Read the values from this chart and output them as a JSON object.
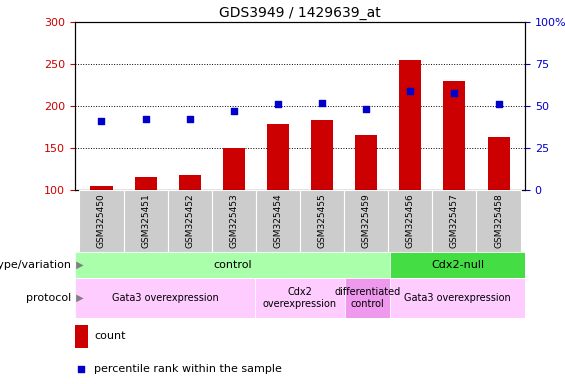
{
  "title": "GDS3949 / 1429639_at",
  "samples": [
    "GSM325450",
    "GSM325451",
    "GSM325452",
    "GSM325453",
    "GSM325454",
    "GSM325455",
    "GSM325459",
    "GSM325456",
    "GSM325457",
    "GSM325458"
  ],
  "counts": [
    105,
    115,
    118,
    150,
    178,
    183,
    165,
    255,
    230,
    163
  ],
  "percentile_ranks_left_scale": [
    182,
    185,
    185,
    194,
    202,
    203,
    196,
    218,
    215,
    202
  ],
  "count_base": 100,
  "ylim_left": [
    100,
    300
  ],
  "ylim_right": [
    0,
    100
  ],
  "yticks_left": [
    100,
    150,
    200,
    250,
    300
  ],
  "yticklabels_left": [
    "100",
    "150",
    "200",
    "250",
    "300"
  ],
  "yticks_right": [
    0,
    25,
    50,
    75,
    100
  ],
  "yticklabels_right": [
    "0",
    "25",
    "50",
    "75",
    "100%"
  ],
  "bar_color": "#cc0000",
  "scatter_color": "#0000cc",
  "genotype_groups": [
    {
      "label": "control",
      "start": 0,
      "end": 7,
      "color": "#aaffaa"
    },
    {
      "label": "Cdx2-null",
      "start": 7,
      "end": 10,
      "color": "#44dd44"
    }
  ],
  "protocol_groups": [
    {
      "label": "Gata3 overexpression",
      "start": 0,
      "end": 4,
      "color": "#ffccff"
    },
    {
      "label": "Cdx2\noverexpression",
      "start": 4,
      "end": 6,
      "color": "#ffccff"
    },
    {
      "label": "differentiated\ncontrol",
      "start": 6,
      "end": 7,
      "color": "#ee99ee"
    },
    {
      "label": "Gata3 overexpression",
      "start": 7,
      "end": 10,
      "color": "#ffccff"
    }
  ],
  "tick_color_left": "#cc0000",
  "tick_color_right": "#0000cc",
  "title_fontsize": 10,
  "label_fontsize": 7.5,
  "row_label_fontsize": 8
}
